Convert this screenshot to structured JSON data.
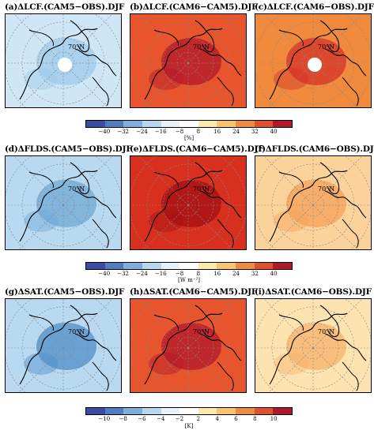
{
  "rows": [
    {
      "panels": [
        {
          "title": "(a)ΔLCF.(CAM5−OBS).DJF",
          "label70": "70°N",
          "fill": "#cfe6f6",
          "accent": "#9ecae9"
        },
        {
          "title": "(b)ΔLCF.(CAM6−CAM5).DJF",
          "label70": "70°N",
          "fill": "#e8542c",
          "accent": "#b2182b"
        },
        {
          "title": "(c)ΔLCF.(CAM6−OBS).DJF",
          "label70": "70°N",
          "fill": "#f08a3c",
          "accent": "#d73027"
        }
      ],
      "colorbar": {
        "ticks": [
          "−40",
          "−32",
          "−24",
          "−16",
          "−8",
          "8",
          "16",
          "24",
          "32",
          "40"
        ],
        "unit": "[%]"
      }
    },
    {
      "panels": [
        {
          "title": "(d)ΔFLDS.(CAM5−OBS).DJF",
          "label70": "70°N",
          "fill": "#b8d9f0",
          "accent": "#6fa8d6"
        },
        {
          "title": "(e)ΔFLDS.(CAM6−CAM5).DJF",
          "label70": "70°N",
          "fill": "#d7301f",
          "accent": "#a50f15"
        },
        {
          "title": "(f)ΔFLDS.(CAM6−OBS).DJF",
          "label70": "70°N",
          "fill": "#fbd39a",
          "accent": "#f4a259"
        }
      ],
      "colorbar": {
        "ticks": [
          "−40",
          "−32",
          "−24",
          "−16",
          "−8",
          "8",
          "16",
          "24",
          "32",
          "40"
        ],
        "unit": "[W m⁻²]"
      }
    },
    {
      "panels": [
        {
          "title": "(g)ΔSAT.(CAM5−OBS).DJF",
          "label70": "70°N",
          "fill": "#b8d9f0",
          "accent": "#4f8dc9"
        },
        {
          "title": "(h)ΔSAT.(CAM6−CAM5).DJF",
          "label70": "70°N",
          "fill": "#e8542c",
          "accent": "#b2182b"
        },
        {
          "title": "(i)ΔSAT.(CAM6−OBS).DJF",
          "label70": "70°N",
          "fill": "#fde3b0",
          "accent": "#f6b26b"
        }
      ],
      "colorbar": {
        "ticks": [
          "−10",
          "−8",
          "−6",
          "−4",
          "−2",
          "2",
          "4",
          "6",
          "8",
          "10"
        ],
        "unit": "[K]"
      }
    }
  ],
  "palette": [
    "#3b4ba8",
    "#4f7dc2",
    "#7eaedc",
    "#b7d7ef",
    "#e6f2fa",
    "#ffffff",
    "#fde9a8",
    "#f8c56a",
    "#f08a3c",
    "#e0502a",
    "#b2182b"
  ]
}
